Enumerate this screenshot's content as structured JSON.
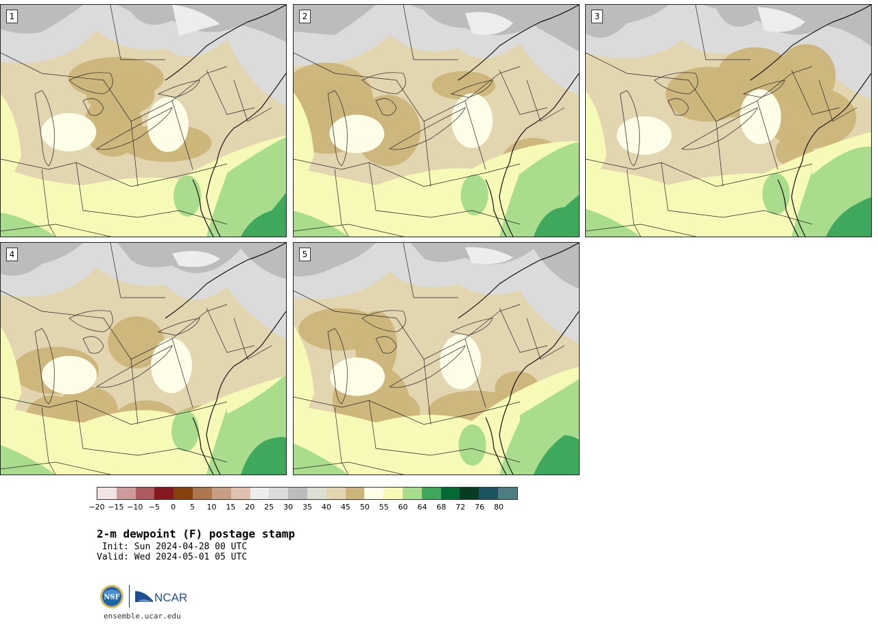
{
  "panels": [
    {
      "label": "1",
      "variant": 0
    },
    {
      "label": "2",
      "variant": 1
    },
    {
      "label": "3",
      "variant": 2
    },
    {
      "label": "4",
      "variant": 3
    },
    {
      "label": "5",
      "variant": 4
    }
  ],
  "colorbar": {
    "colors": [
      "#f2e4e4",
      "#cf9c9e",
      "#ad5a5e",
      "#881820",
      "#88400f",
      "#ad764f",
      "#c79e84",
      "#e0c0b0",
      "#ededed",
      "#dbdbdb",
      "#bcbcbc",
      "#dedfd3",
      "#e2d6b0",
      "#cbb57a",
      "#fefee8",
      "#f6fab6",
      "#a9dd8d",
      "#40a85c",
      "#036a33",
      "#073c20",
      "#1b545e",
      "#4c7d82"
    ],
    "ticks": [
      "−20",
      "−15",
      "−10",
      "−5",
      "0",
      "5",
      "10",
      "15",
      "20",
      "25",
      "30",
      "35",
      "40",
      "45",
      "50",
      "55",
      "60",
      "64",
      "68",
      "72",
      "76",
      "80"
    ],
    "units": "F"
  },
  "title": "2-m dewpoint (F) postage stamp",
  "init": " Init: Sun 2024-04-28 00 UTC",
  "valid": "Valid: Wed 2024-05-01 05 UTC",
  "logos": {
    "nsf": "NSF",
    "ncar": "NCAR"
  },
  "site": "ensemble.ucar.edu"
}
